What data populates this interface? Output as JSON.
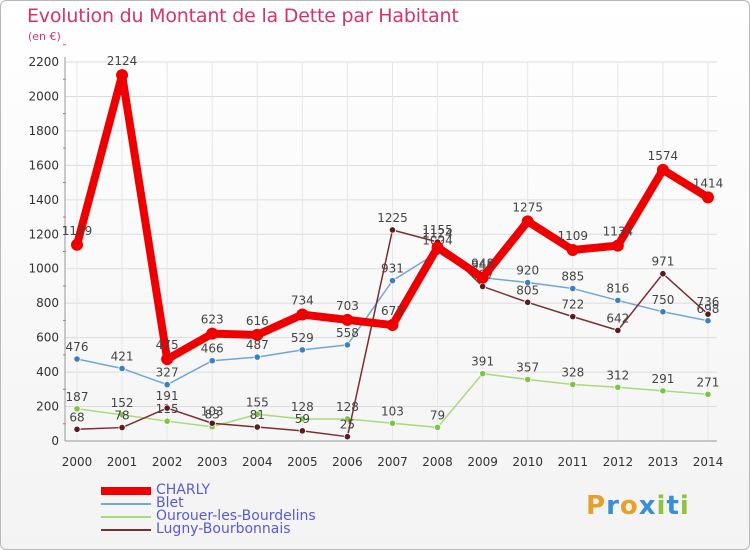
{
  "title": "Evolution du Montant de la Dette par Habitant",
  "subtitle": "(en €)",
  "logo": {
    "text": "Proxiti",
    "letters": [
      "P",
      "r",
      "o",
      "x",
      "i",
      "t",
      "i"
    ],
    "colors": [
      "#e6a12b",
      "#3b8fd6",
      "#e6a12b",
      "#3b8fd6",
      "#8fc43f",
      "#3b8fd6",
      "#8fc43f"
    ]
  },
  "chart_data": {
    "type": "line",
    "title": "Evolution du Montant de la Dette par Habitant",
    "ylabel": "(en €)",
    "xlabel": "",
    "x": [
      "2000",
      "2001",
      "2002",
      "2003",
      "2004",
      "2005",
      "2006",
      "2007",
      "2008",
      "2009",
      "2010",
      "2011",
      "2012",
      "2013",
      "2014"
    ],
    "ylim": [
      0,
      2200
    ],
    "yticks": [
      "0",
      "200",
      "400",
      "600",
      "800",
      "1000",
      "1200",
      "1400",
      "1600",
      "1800",
      "2000",
      "2200"
    ],
    "grid": true,
    "legend_position": "bottom-left",
    "series": [
      {
        "name": "CHARLY",
        "color": "#ee0000",
        "width": 8,
        "values": [
          1139,
          2124,
          475,
          623,
          616,
          734,
          703,
          673,
          1124,
          948,
          1275,
          1109,
          1134,
          1574,
          1414
        ],
        "labels": [
          "1139",
          "2124",
          "475",
          "623",
          "616",
          "734",
          "703",
          "673",
          "1124",
          "948",
          "1275",
          "1109",
          "1134",
          "1574",
          "1414"
        ]
      },
      {
        "name": "Blet",
        "color": "#6fa7d6",
        "point": "#3c7fc0",
        "width": 1.5,
        "values": [
          476,
          421,
          327,
          466,
          487,
          529,
          558,
          931,
          1094,
          948,
          920,
          885,
          816,
          750,
          698
        ],
        "labels": [
          "476",
          "421",
          "327",
          "466",
          "487",
          "529",
          "558",
          "931",
          "1094",
          "948",
          "920",
          "885",
          "816",
          "750",
          "698"
        ]
      },
      {
        "name": "Ourouer-les-Bourdelins",
        "color": "#a6dc7c",
        "point": "#7cc443",
        "width": 1.5,
        "values": [
          187,
          152,
          115,
          83,
          155,
          128,
          128,
          103,
          79,
          391,
          357,
          328,
          312,
          291,
          271
        ],
        "labels": [
          "187",
          "152",
          "115",
          "83",
          "155",
          "128",
          "128",
          "103",
          "79",
          "391",
          "357",
          "328",
          "312",
          "291",
          "271"
        ]
      },
      {
        "name": "Lugny-Bourbonnais",
        "color": "#7b2e32",
        "point": "#5a1a1e",
        "width": 1.5,
        "values": [
          68,
          78,
          191,
          103,
          81,
          59,
          25,
          1225,
          1155,
          897,
          805,
          722,
          642,
          971,
          736
        ],
        "labels": [
          "68",
          "78",
          "191",
          "103",
          "81",
          "59",
          "25",
          "1225",
          "1155",
          "897",
          "805",
          "722",
          "642",
          "971",
          "736"
        ]
      }
    ]
  }
}
